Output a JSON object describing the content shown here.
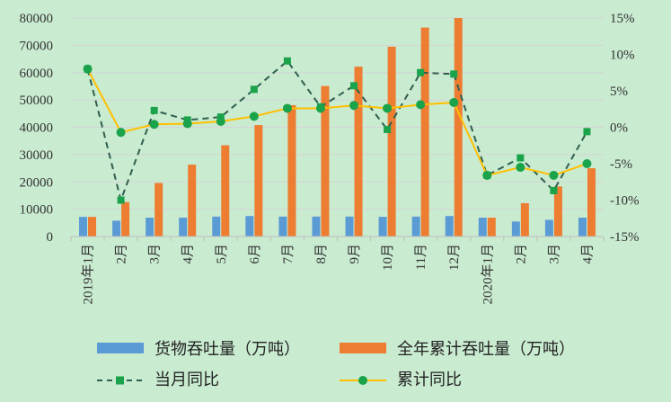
{
  "chart_data": {
    "type": "bar",
    "categories": [
      "2019年1月",
      "2月",
      "3月",
      "4月",
      "5月",
      "6月",
      "7月",
      "8月",
      "9月",
      "10月",
      "11月",
      "12月",
      "2020年1月",
      "2月",
      "3月",
      "4月"
    ],
    "series": [
      {
        "name": "货物吞吐量（万吨）",
        "type": "bar",
        "axis": "left",
        "color": "#5b9bd5",
        "values": [
          7200,
          5800,
          6900,
          6900,
          7300,
          7500,
          7300,
          7300,
          7300,
          7200,
          7300,
          7500,
          6900,
          5500,
          6100,
          6900
        ]
      },
      {
        "name": "全年累计吞吐量（万吨）",
        "type": "bar",
        "axis": "left",
        "color": "#ed7d31",
        "values": [
          7200,
          12600,
          19600,
          26300,
          33400,
          40800,
          48100,
          55100,
          62200,
          69500,
          76500,
          84000,
          6900,
          12200,
          18300,
          25000
        ]
      },
      {
        "name": "当月同比",
        "type": "line",
        "axis": "right",
        "style": "dashed",
        "color": "#2f5f4f",
        "marker": "square",
        "marker_color": "#1aa34a",
        "values": [
          8.0,
          -10.0,
          2.3,
          1.0,
          1.4,
          5.2,
          9.1,
          2.8,
          5.7,
          -0.3,
          7.5,
          7.3,
          -6.6,
          -4.2,
          -8.7,
          -0.6
        ]
      },
      {
        "name": "累计同比",
        "type": "line",
        "axis": "right",
        "style": "solid",
        "color": "#ffc000",
        "marker": "circle",
        "marker_color": "#1aa34a",
        "values": [
          8.0,
          -0.7,
          0.4,
          0.5,
          0.8,
          1.5,
          2.6,
          2.6,
          3.0,
          2.6,
          3.1,
          3.4,
          -6.6,
          -5.5,
          -6.6,
          -5.0
        ]
      }
    ],
    "y_left": {
      "min": 0,
      "max": 80000,
      "step": 10000
    },
    "y_right": {
      "min": -15,
      "max": 15,
      "step": 5,
      "unit": "%"
    },
    "grid": true,
    "legend": "bottom"
  }
}
